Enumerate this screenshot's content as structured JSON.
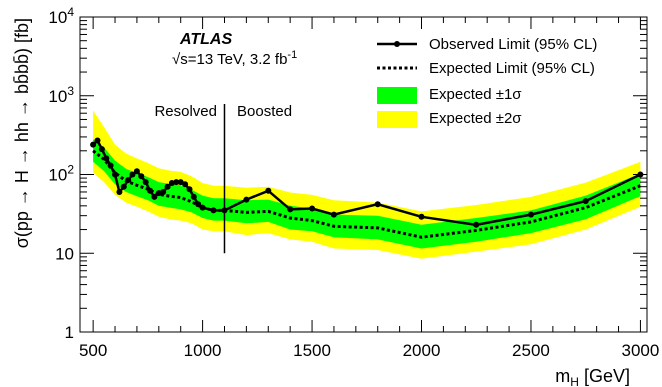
{
  "chart_data": {
    "type": "line",
    "experiment": "ATLAS",
    "energy_text": "s=13 TeV, 3.2 fb",
    "energy_sqrt": "√",
    "energy_sup": "-1",
    "xlabel": "m",
    "xlabel_sub": "H",
    "xlabel_unit": " [GeV]",
    "ylabel": "σ(pp → H → hh → bb̄bb̄) [fb]",
    "xlim": [
      440,
      3030
    ],
    "ylim": [
      1,
      10000
    ],
    "yscale": "log",
    "x_ticks": [
      500,
      1000,
      1500,
      2000,
      2500,
      3000
    ],
    "y_ticks": [
      {
        "value": 1,
        "label": "1"
      },
      {
        "value": 10,
        "label": "10"
      },
      {
        "value": 100,
        "label": "10",
        "sup": "2"
      },
      {
        "value": 1000,
        "label": "10",
        "sup": "3"
      },
      {
        "value": 10000,
        "label": "10",
        "sup": "4"
      }
    ],
    "region_boundary": 1100,
    "region_labels": {
      "left": "Resolved",
      "right": "Boosted"
    },
    "colors": {
      "observed": "#000000",
      "expected": "#000000",
      "band1": "#00ff00",
      "band2": "#ffff00"
    },
    "legend": [
      {
        "label": "Observed Limit (95% CL)",
        "style": "observed"
      },
      {
        "label": "Expected Limit (95% CL)",
        "style": "expected"
      },
      {
        "label": "Expected ±1σ",
        "style": "band1"
      },
      {
        "label": "Expected ±2σ",
        "style": "band2"
      }
    ],
    "legend_position": "top-right",
    "series": [
      {
        "name": "Observed Limit (95% CL)",
        "x": [
          500,
          520,
          540,
          560,
          580,
          600,
          620,
          640,
          660,
          680,
          700,
          720,
          740,
          760,
          780,
          800,
          820,
          840,
          860,
          880,
          900,
          920,
          940,
          960,
          980,
          1000,
          1050,
          1100,
          1200,
          1300,
          1400,
          1500,
          1600,
          1800,
          2000,
          2250,
          2500,
          2750,
          3000
        ],
        "y": [
          240,
          270,
          210,
          160,
          130,
          100,
          60,
          70,
          85,
          100,
          110,
          95,
          80,
          62,
          52,
          58,
          60,
          70,
          78,
          80,
          80,
          75,
          65,
          52,
          42,
          38,
          35,
          35,
          48,
          62,
          36,
          37,
          31,
          42,
          29,
          23,
          31,
          46,
          100
        ]
      },
      {
        "name": "Expected Limit (95% CL)",
        "x": [
          500,
          550,
          600,
          650,
          700,
          750,
          800,
          850,
          900,
          950,
          1000,
          1050,
          1100,
          1200,
          1300,
          1400,
          1500,
          1600,
          1800,
          2000,
          2250,
          2500,
          2750,
          3000
        ],
        "y": [
          200,
          155,
          105,
          83,
          73,
          65,
          56,
          53,
          51,
          45,
          38,
          35,
          35,
          33,
          34,
          28,
          26,
          22,
          21,
          16,
          19.5,
          25,
          38,
          72
        ]
      }
    ],
    "bands": {
      "x": [
        500,
        550,
        600,
        650,
        700,
        750,
        800,
        850,
        900,
        950,
        1000,
        1050,
        1100,
        1200,
        1300,
        1400,
        1500,
        1600,
        1800,
        2000,
        2250,
        2500,
        2750,
        3000
      ],
      "band1_low": [
        145,
        110,
        75,
        60,
        53,
        47,
        40,
        38,
        36,
        33,
        28,
        26,
        26,
        24,
        25,
        20,
        19,
        16,
        15,
        11.5,
        14,
        18,
        27,
        53
      ],
      "band1_high": [
        280,
        220,
        150,
        118,
        104,
        93,
        80,
        76,
        73,
        64,
        54,
        50,
        50,
        47,
        48,
        40,
        37,
        31,
        30,
        23,
        28,
        35,
        54,
        102
      ],
      "band2_low": [
        105,
        80,
        55,
        44,
        39,
        34,
        29,
        27,
        26,
        24,
        20,
        19,
        19,
        17,
        18,
        15,
        14,
        11.5,
        11,
        8.5,
        10.5,
        13,
        20,
        39
      ],
      "band2_high": [
        650,
        400,
        240,
        185,
        160,
        140,
        120,
        112,
        108,
        95,
        78,
        72,
        72,
        68,
        70,
        59,
        55,
        47,
        44,
        34,
        41,
        52,
        79,
        145
      ]
    }
  }
}
